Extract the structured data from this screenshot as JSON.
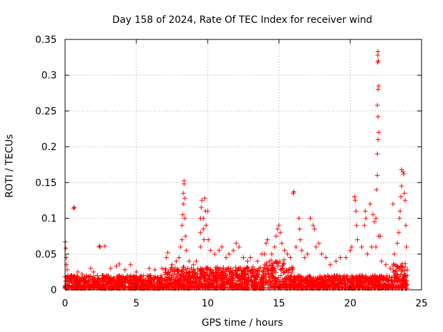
{
  "chart_data": {
    "type": "scatter",
    "title": "Day 158 of 2024, Rate Of TEC Index for receiver wind",
    "xlabel": "GPS time / hours",
    "ylabel": "ROTI / TECUs",
    "xlim": [
      0,
      25
    ],
    "ylim": [
      0,
      0.35
    ],
    "xticks": [
      0,
      5,
      10,
      15,
      20,
      25
    ],
    "xtick_labels": [
      "0",
      "5",
      "10",
      "15",
      "20",
      "25"
    ],
    "yticks": [
      0,
      0.05,
      0.1,
      0.15,
      0.2,
      0.25,
      0.3,
      0.35
    ],
    "ytick_labels": [
      "0",
      "0.05",
      "0.1",
      "0.15",
      "0.2",
      "0.25",
      "0.3",
      "0.35"
    ],
    "grid": true,
    "marker": "+",
    "series_color": "#ff0000",
    "grid_color": "#a0a0a0",
    "series": [
      {
        "name": "ROTI",
        "points": [
          [
            0.02,
            0.067
          ],
          [
            0.05,
            0.058
          ],
          [
            0.08,
            0.045
          ],
          [
            0.1,
            0.035
          ],
          [
            0.15,
            0.028
          ],
          [
            0.2,
            0.02
          ],
          [
            0.3,
            0.018
          ],
          [
            0.45,
            0.015
          ],
          [
            0.6,
            0.114
          ],
          [
            0.65,
            0.115
          ],
          [
            0.9,
            0.025
          ],
          [
            1.2,
            0.022
          ],
          [
            1.5,
            0.02
          ],
          [
            1.8,
            0.03
          ],
          [
            2.0,
            0.025
          ],
          [
            2.4,
            0.061
          ],
          [
            2.45,
            0.06
          ],
          [
            2.8,
            0.061
          ],
          [
            3.2,
            0.03
          ],
          [
            3.6,
            0.033
          ],
          [
            3.8,
            0.036
          ],
          [
            4.2,
            0.028
          ],
          [
            4.6,
            0.035
          ],
          [
            5.0,
            0.025
          ],
          [
            5.5,
            0.02
          ],
          [
            5.9,
            0.03
          ],
          [
            6.3,
            0.028
          ],
          [
            6.8,
            0.03
          ],
          [
            7.1,
            0.045
          ],
          [
            7.2,
            0.052
          ],
          [
            7.5,
            0.035
          ],
          [
            7.8,
            0.04
          ],
          [
            8.0,
            0.045
          ],
          [
            8.1,
            0.06
          ],
          [
            8.2,
            0.07
          ],
          [
            8.2,
            0.09
          ],
          [
            8.25,
            0.105
          ],
          [
            8.3,
            0.12
          ],
          [
            8.3,
            0.135
          ],
          [
            8.35,
            0.148
          ],
          [
            8.35,
            0.152
          ],
          [
            8.4,
            0.128
          ],
          [
            8.4,
            0.1
          ],
          [
            8.45,
            0.075
          ],
          [
            8.5,
            0.055
          ],
          [
            8.7,
            0.04
          ],
          [
            9.0,
            0.035
          ],
          [
            9.2,
            0.04
          ],
          [
            9.5,
            0.06
          ],
          [
            9.5,
            0.08
          ],
          [
            9.5,
            0.1
          ],
          [
            9.55,
            0.115
          ],
          [
            9.6,
            0.125
          ],
          [
            9.7,
            0.1
          ],
          [
            9.7,
            0.085
          ],
          [
            9.75,
            0.07
          ],
          [
            9.8,
            0.128
          ],
          [
            9.85,
            0.11
          ],
          [
            9.9,
            0.09
          ],
          [
            10.0,
            0.11
          ],
          [
            10.05,
            0.07
          ],
          [
            10.2,
            0.055
          ],
          [
            10.5,
            0.05
          ],
          [
            10.8,
            0.055
          ],
          [
            11.0,
            0.06
          ],
          [
            11.3,
            0.045
          ],
          [
            11.5,
            0.05
          ],
          [
            11.8,
            0.055
          ],
          [
            12.0,
            0.065
          ],
          [
            12.2,
            0.06
          ],
          [
            12.5,
            0.045
          ],
          [
            12.8,
            0.04
          ],
          [
            13.0,
            0.045
          ],
          [
            13.5,
            0.04
          ],
          [
            13.8,
            0.05
          ],
          [
            14.0,
            0.05
          ],
          [
            14.1,
            0.065
          ],
          [
            14.2,
            0.07
          ],
          [
            14.5,
            0.05
          ],
          [
            14.7,
            0.06
          ],
          [
            14.8,
            0.075
          ],
          [
            14.9,
            0.085
          ],
          [
            15.0,
            0.09
          ],
          [
            15.1,
            0.08
          ],
          [
            15.2,
            0.065
          ],
          [
            15.4,
            0.055
          ],
          [
            15.6,
            0.05
          ],
          [
            15.8,
            0.045
          ],
          [
            16.0,
            0.135
          ],
          [
            16.05,
            0.137
          ],
          [
            16.2,
            0.06
          ],
          [
            16.4,
            0.1
          ],
          [
            16.45,
            0.085
          ],
          [
            16.5,
            0.07
          ],
          [
            16.6,
            0.055
          ],
          [
            16.8,
            0.045
          ],
          [
            17.0,
            0.05
          ],
          [
            17.2,
            0.1
          ],
          [
            17.4,
            0.09
          ],
          [
            17.5,
            0.085
          ],
          [
            17.6,
            0.06
          ],
          [
            17.8,
            0.065
          ],
          [
            18.0,
            0.05
          ],
          [
            18.3,
            0.045
          ],
          [
            18.6,
            0.035
          ],
          [
            19.0,
            0.04
          ],
          [
            19.3,
            0.045
          ],
          [
            19.7,
            0.045
          ],
          [
            20.0,
            0.055
          ],
          [
            20.1,
            0.06
          ],
          [
            20.3,
            0.13
          ],
          [
            20.35,
            0.125
          ],
          [
            20.4,
            0.11
          ],
          [
            20.45,
            0.09
          ],
          [
            20.5,
            0.07
          ],
          [
            20.8,
            0.06
          ],
          [
            21.0,
            0.09
          ],
          [
            21.05,
            0.11
          ],
          [
            21.1,
            0.1
          ],
          [
            21.2,
            0.05
          ],
          [
            21.4,
            0.12
          ],
          [
            21.5,
            0.06
          ],
          [
            21.6,
            0.105
          ],
          [
            21.7,
            0.095
          ],
          [
            21.8,
            0.06
          ],
          [
            21.8,
            0.1
          ],
          [
            21.85,
            0.14
          ],
          [
            21.9,
            0.16
          ],
          [
            21.9,
            0.19
          ],
          [
            21.95,
            0.21
          ],
          [
            22.0,
            0.22
          ],
          [
            21.95,
            0.242
          ],
          [
            21.9,
            0.258
          ],
          [
            21.95,
            0.28
          ],
          [
            22.0,
            0.285
          ],
          [
            21.92,
            0.318
          ],
          [
            21.97,
            0.32
          ],
          [
            21.93,
            0.328
          ],
          [
            21.95,
            0.333
          ],
          [
            22.0,
            0.075
          ],
          [
            22.1,
            0.075
          ],
          [
            22.2,
            0.04
          ],
          [
            22.5,
            0.035
          ],
          [
            22.8,
            0.03
          ],
          [
            23.0,
            0.12
          ],
          [
            23.1,
            0.05
          ],
          [
            23.3,
            0.065
          ],
          [
            23.4,
            0.08
          ],
          [
            23.45,
            0.1
          ],
          [
            23.5,
            0.11
          ],
          [
            23.55,
            0.13
          ],
          [
            23.6,
            0.145
          ],
          [
            23.6,
            0.168
          ],
          [
            23.7,
            0.165
          ],
          [
            23.75,
            0.162
          ],
          [
            23.8,
            0.135
          ],
          [
            23.85,
            0.125
          ],
          [
            23.9,
            0.09
          ],
          [
            23.95,
            0.06
          ],
          [
            24.0,
            0.02
          ]
        ]
      }
    ]
  }
}
